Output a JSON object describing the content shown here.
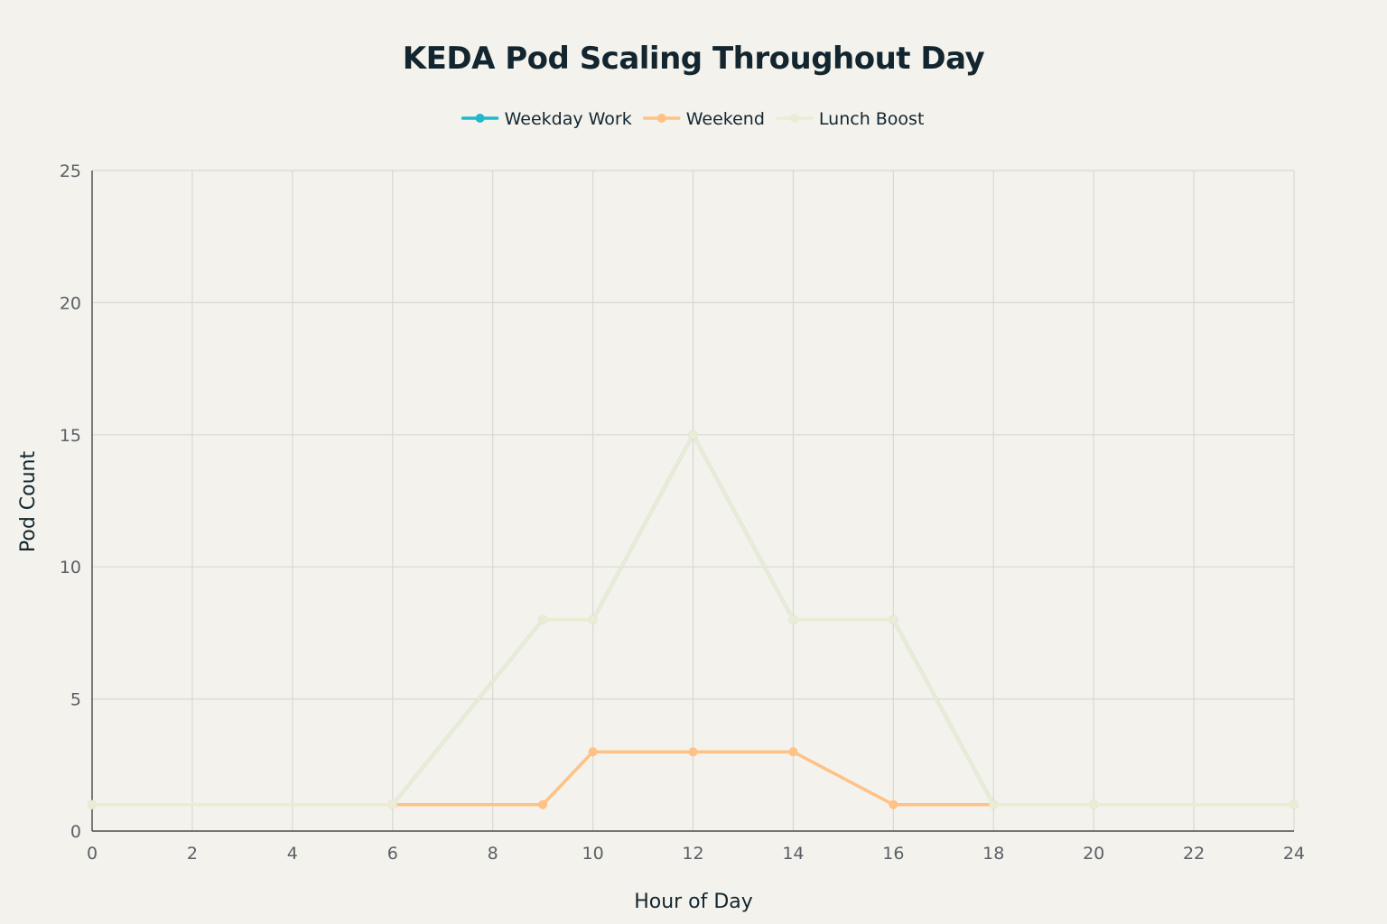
{
  "chart_data": {
    "type": "line",
    "title": "KEDA Pod Scaling Throughout Day",
    "xlabel": "Hour of Day",
    "ylabel": "Pod Count",
    "xlim": [
      0,
      24
    ],
    "ylim": [
      0,
      25
    ],
    "x_ticks": [
      "0",
      "2",
      "4",
      "6",
      "8",
      "10",
      "12",
      "14",
      "16",
      "18",
      "20",
      "22",
      "24"
    ],
    "y_ticks": [
      "0",
      "5",
      "10",
      "15",
      "20",
      "25"
    ],
    "grid": true,
    "legend_position": "top-center",
    "series": [
      {
        "name": "Weekday Work",
        "color": "#1fb8cd",
        "x": [
          0,
          6,
          9,
          10,
          12,
          14,
          16,
          18,
          20,
          24
        ],
        "y": [
          1,
          1,
          8,
          8,
          15,
          8,
          8,
          1,
          1,
          1
        ]
      },
      {
        "name": "Weekend",
        "color": "#ffc185",
        "x": [
          0,
          6,
          9,
          10,
          12,
          14,
          16,
          18,
          20,
          24
        ],
        "y": [
          1,
          1,
          1,
          3,
          3,
          3,
          1,
          1,
          1,
          1
        ]
      },
      {
        "name": "Lunch Boost",
        "color": "#ecebd5",
        "x": [
          0,
          6,
          9,
          10,
          12,
          14,
          16,
          18,
          20,
          24
        ],
        "y": [
          1,
          1,
          8,
          8,
          15,
          8,
          8,
          1,
          1,
          1
        ]
      }
    ]
  }
}
